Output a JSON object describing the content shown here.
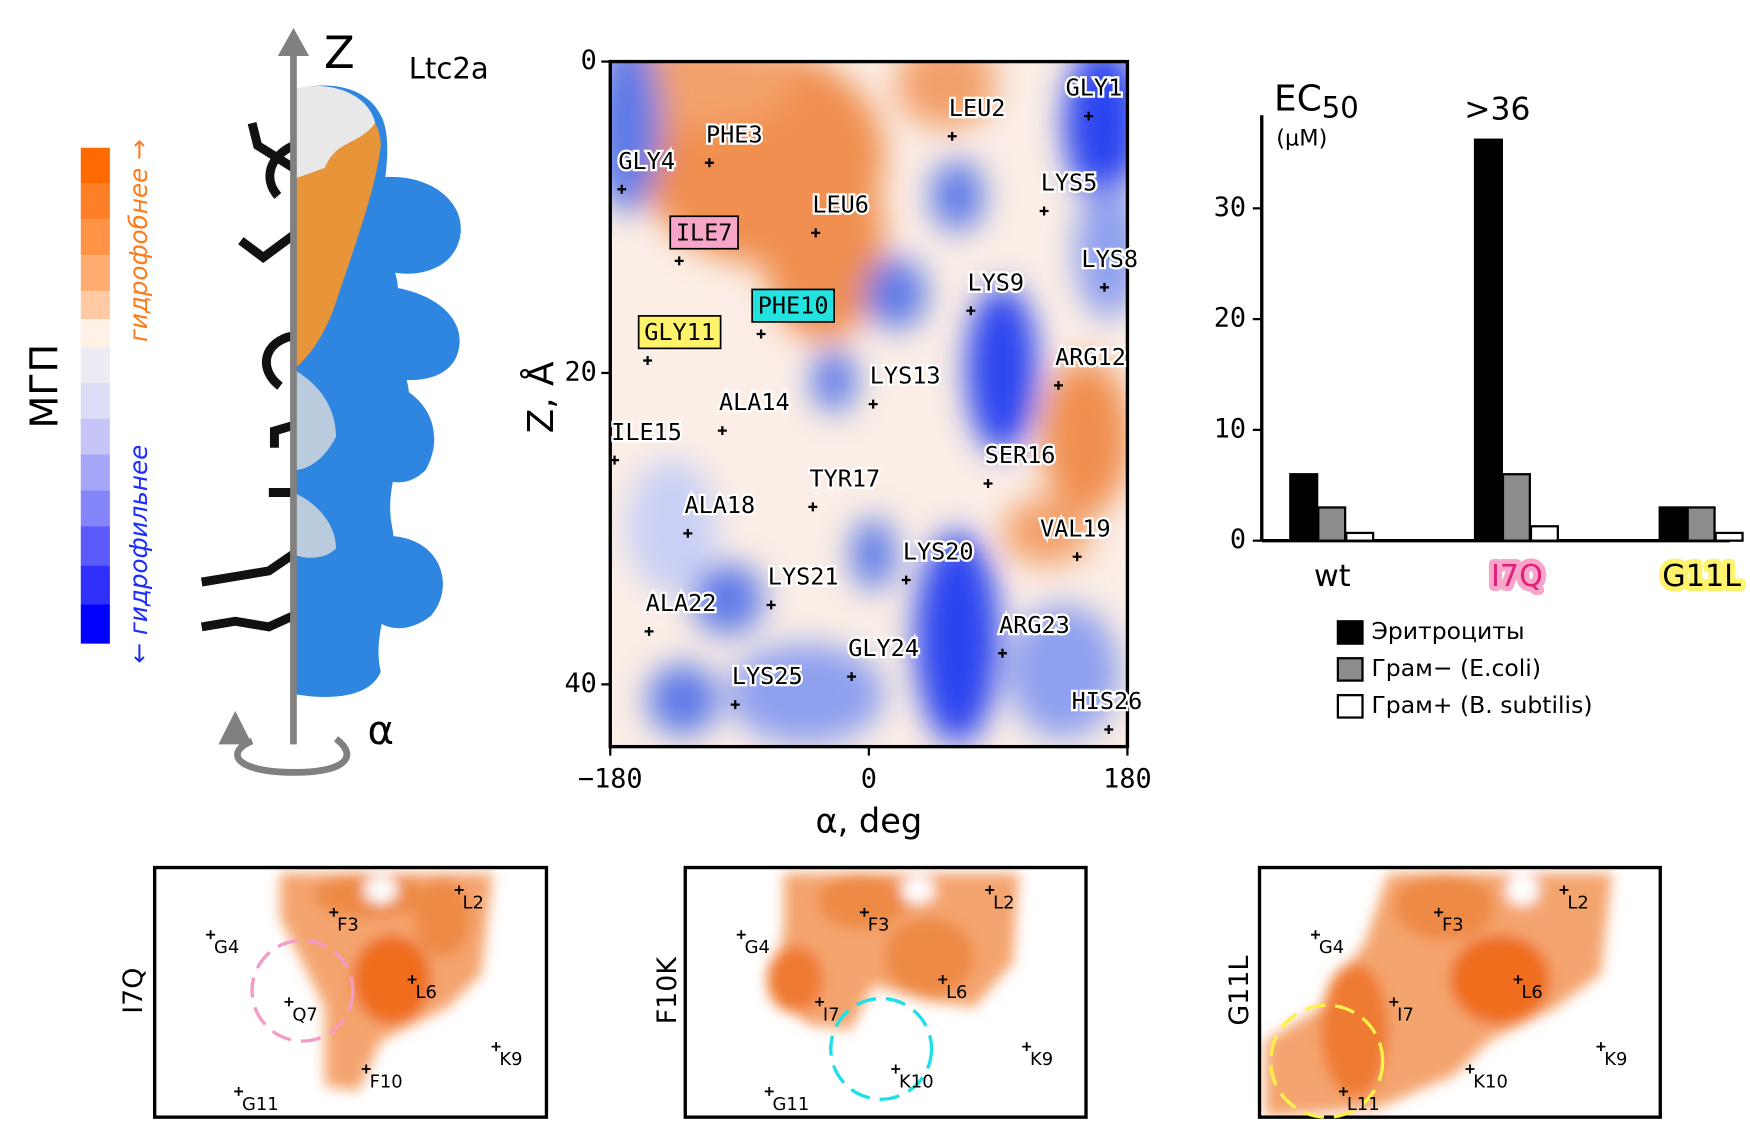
{
  "panel_a": {
    "axis_label": "Z",
    "molecule": "Ltc2a",
    "rotation_label": "α",
    "scale_label": "МГП",
    "hydrophobic_label": "гидрофобнее →",
    "hydrophilic_label": "← гидрофильнее"
  },
  "chart_data": [
    {
      "type": "scatter",
      "xlabel": "α, deg",
      "ylabel": "Z, Å",
      "xlim": [
        -180,
        180
      ],
      "ylim": [
        0,
        44
      ],
      "y_inverted": true,
      "xticks": [
        {
          "value": -180,
          "label": "−180"
        },
        0,
        180
      ],
      "yticks": [
        0,
        20,
        40
      ],
      "labels": [
        "GLY1",
        "LEU2",
        "PHE3",
        "GLY4",
        "LYS5",
        "LEU6",
        "ILE7",
        "LYS8",
        "LYS9",
        "PHE10",
        "GLY11",
        "ARG12",
        "LYS13",
        "ALA14",
        "ILE15",
        "SER16",
        "TYR17",
        "ALA18",
        "VAL19",
        "LYS20",
        "LYS21",
        "ALA22",
        "ARG23",
        "GLY24",
        "LYS25",
        "HIS26"
      ],
      "x": [
        153,
        58,
        -111,
        -172,
        122,
        -37,
        -132,
        164,
        71,
        -75,
        -154,
        132,
        3,
        -102,
        -177,
        83,
        -39,
        -126,
        145,
        26,
        -68,
        -153,
        93,
        -12,
        -93,
        167
      ],
      "y": [
        3.5,
        4.8,
        6.5,
        8.2,
        9.6,
        11,
        12.8,
        14.5,
        16,
        17.5,
        19.2,
        20.8,
        22,
        23.7,
        25.6,
        27.1,
        28.6,
        30.3,
        31.8,
        33.3,
        34.9,
        36.6,
        38,
        39.5,
        41.3,
        42.9
      ],
      "label_colors": [
        "#ffffff",
        "#ffffff",
        "#ffffff",
        "#ffffff",
        "#ffffff",
        "#ffffff",
        "#f7a6c9",
        "#ffffff",
        "#ffffff",
        "#22e3e0",
        "#fff36b",
        "#ffffff",
        "#ffffff",
        "#ffffff",
        "#ffffff",
        "#ffffff",
        "#ffffff",
        "#ffffff",
        "#ffffff",
        "#ffffff",
        "#ffffff",
        "#ffffff",
        "#ffffff",
        "#ffffff",
        "#ffffff",
        "#ffffff"
      ]
    },
    {
      "type": "bar",
      "title": "EC",
      "title_subscript": "50",
      "unit": "(µM)",
      "categories": [
        "wt",
        "I7Q",
        "G11L"
      ],
      "category_colors": [
        "#ffffff",
        "#f7a6c9",
        "#fff36b"
      ],
      "ylim": [
        0,
        38.4
      ],
      "yticks": [
        0,
        10,
        20,
        30
      ],
      "series": [
        {
          "name": "Эритроциты",
          "color": "#000000",
          "values": [
            6,
            36.2,
            3
          ],
          "value_labels": [
            null,
            ">36",
            null
          ]
        },
        {
          "name": "Грам− (E.coli)",
          "color": "#8c8c8c",
          "values": [
            3,
            6,
            3
          ]
        },
        {
          "name": "Грам+ (B. subtilis)",
          "color": "#ffffff",
          "values": [
            0.7,
            1.3,
            0.7
          ]
        }
      ]
    }
  ],
  "mutant_panels": [
    {
      "label": "I7Q",
      "residues": [
        "G4",
        "F3",
        "L2",
        "Q7",
        "L6",
        "F10",
        "G11",
        "K9"
      ]
    },
    {
      "label": "F10K",
      "residues": [
        "G4",
        "F3",
        "L2",
        "I7",
        "L6",
        "K10",
        "G11",
        "K9"
      ]
    },
    {
      "label": "G11L",
      "residues": [
        "G4",
        "F3",
        "L2",
        "I7",
        "L6",
        "L11",
        "K10",
        "K9"
      ]
    }
  ]
}
